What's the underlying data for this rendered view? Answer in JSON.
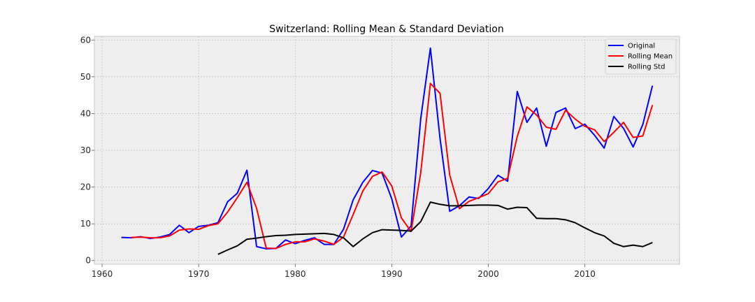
{
  "chart_data": {
    "type": "line",
    "title": "Switzerland: Rolling Mean & Standard Deviation",
    "xlabel": "",
    "ylabel": "",
    "xlim": [
      1959.2,
      2019.8
    ],
    "ylim": [
      -1,
      61
    ],
    "xticks": [
      1960,
      1970,
      1980,
      1990,
      2000,
      2010
    ],
    "yticks": [
      0,
      10,
      20,
      30,
      40,
      50,
      60
    ],
    "grid": true,
    "legend_position": "top-right",
    "series": [
      {
        "name": "Original",
        "color": "#0000ff",
        "x": [
          1962,
          1963,
          1964,
          1965,
          1966,
          1967,
          1968,
          1969,
          1970,
          1971,
          1972,
          1973,
          1974,
          1975,
          1976,
          1977,
          1978,
          1979,
          1980,
          1981,
          1982,
          1983,
          1984,
          1985,
          1986,
          1987,
          1988,
          1989,
          1990,
          1991,
          1992,
          1993,
          1994,
          1995,
          1996,
          1997,
          1998,
          1999,
          2000,
          2001,
          2002,
          2003,
          2004,
          2005,
          2006,
          2007,
          2008,
          2009,
          2010,
          2011,
          2012,
          2013,
          2014,
          2015,
          2016,
          2017
        ],
        "y": [
          6.3,
          6.2,
          6.5,
          6.0,
          6.4,
          7.1,
          9.6,
          7.6,
          9.3,
          9.6,
          10.3,
          16.0,
          18.3,
          24.6,
          3.8,
          3.2,
          3.3,
          5.6,
          4.6,
          5.5,
          6.2,
          4.4,
          4.4,
          8.5,
          16.5,
          21.3,
          24.5,
          23.8,
          16.8,
          6.4,
          9.4,
          38.6,
          57.8,
          33.2,
          13.4,
          14.9,
          17.3,
          16.9,
          19.6,
          23.2,
          21.6,
          46.0,
          37.6,
          41.5,
          31.1,
          40.3,
          41.5,
          35.9,
          37.1,
          34.1,
          30.6,
          39.2,
          36.0,
          30.9,
          37.0,
          47.6
        ]
      },
      {
        "name": "Rolling Mean",
        "color": "#ff0000",
        "x": [
          1963,
          1964,
          1965,
          1966,
          1967,
          1968,
          1969,
          1970,
          1971,
          1972,
          1973,
          1974,
          1975,
          1976,
          1977,
          1978,
          1979,
          1980,
          1981,
          1982,
          1983,
          1984,
          1985,
          1986,
          1987,
          1988,
          1989,
          1990,
          1991,
          1992,
          1993,
          1994,
          1995,
          1996,
          1997,
          1998,
          1999,
          2000,
          2001,
          2002,
          2003,
          2004,
          2005,
          2006,
          2007,
          2008,
          2009,
          2010,
          2011,
          2012,
          2013,
          2014,
          2015,
          2016,
          2017
        ],
        "y": [
          6.3,
          6.4,
          6.2,
          6.2,
          6.7,
          8.3,
          8.6,
          8.5,
          9.5,
          10.0,
          13.2,
          17.1,
          21.3,
          14.2,
          3.4,
          3.3,
          4.4,
          5.1,
          5.1,
          5.9,
          5.3,
          4.4,
          6.4,
          12.5,
          18.9,
          22.9,
          24.1,
          20.3,
          11.6,
          7.9,
          23.9,
          48.2,
          45.5,
          23.3,
          14.1,
          16.1,
          17.1,
          18.2,
          21.4,
          22.4,
          33.8,
          41.8,
          39.6,
          36.3,
          35.7,
          40.9,
          38.5,
          36.5,
          35.6,
          32.4,
          34.9,
          37.6,
          33.5,
          33.9,
          42.3
        ]
      },
      {
        "name": "Rolling Std",
        "color": "#000000",
        "x": [
          1972,
          1973,
          1974,
          1975,
          1976,
          1977,
          1978,
          1979,
          1980,
          1981,
          1982,
          1983,
          1984,
          1985,
          1986,
          1987,
          1988,
          1989,
          1990,
          1991,
          1992,
          1993,
          1994,
          1995,
          1996,
          1997,
          1998,
          1999,
          2000,
          2001,
          2002,
          2003,
          2004,
          2005,
          2006,
          2007,
          2008,
          2009,
          2010,
          2011,
          2012,
          2013,
          2014,
          2015,
          2016,
          2017
        ],
        "y": [
          1.7,
          2.9,
          4.0,
          5.8,
          6.1,
          6.5,
          6.8,
          6.9,
          7.1,
          7.2,
          7.3,
          7.4,
          7.1,
          6.2,
          3.8,
          5.9,
          7.6,
          8.4,
          8.3,
          8.2,
          8.0,
          10.6,
          15.9,
          15.3,
          14.9,
          14.9,
          15.0,
          15.1,
          15.1,
          15.0,
          14.0,
          14.5,
          14.4,
          11.5,
          11.4,
          11.4,
          11.1,
          10.3,
          8.9,
          7.6,
          6.7,
          4.7,
          3.8,
          4.2,
          3.8,
          4.9
        ]
      }
    ]
  }
}
